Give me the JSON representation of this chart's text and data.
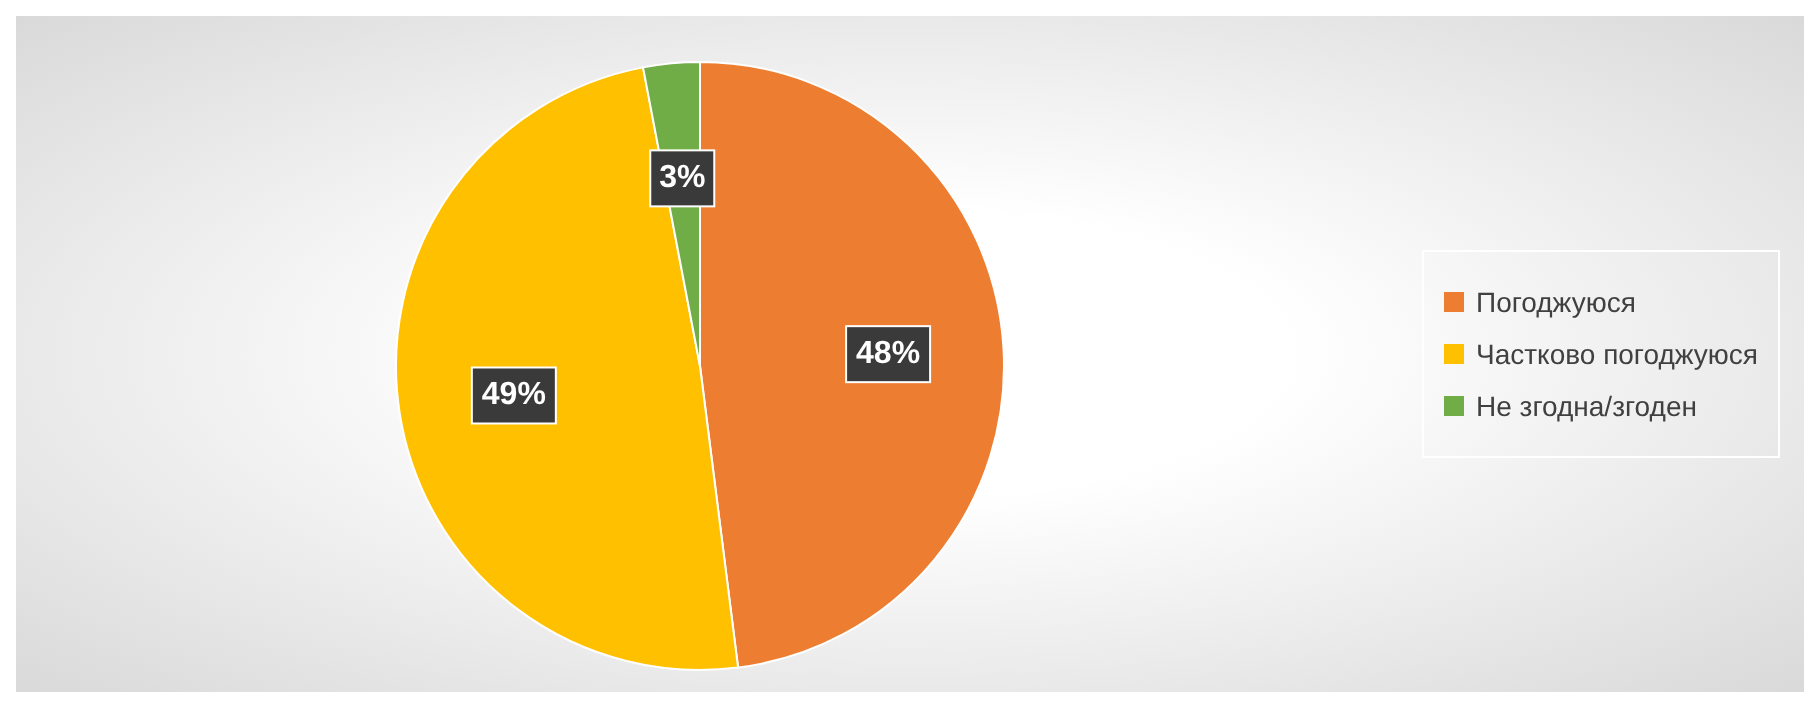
{
  "chart_data": {
    "type": "pie",
    "categories": [
      "Погоджуюся",
      "Частково погоджуюся",
      "Не згодна/згоден"
    ],
    "values": [
      48,
      49,
      3
    ],
    "colors": [
      "#ed7d31",
      "#ffc000",
      "#70ad47"
    ],
    "value_labels": [
      "48%",
      "49%",
      "3%"
    ],
    "legend": "right"
  }
}
